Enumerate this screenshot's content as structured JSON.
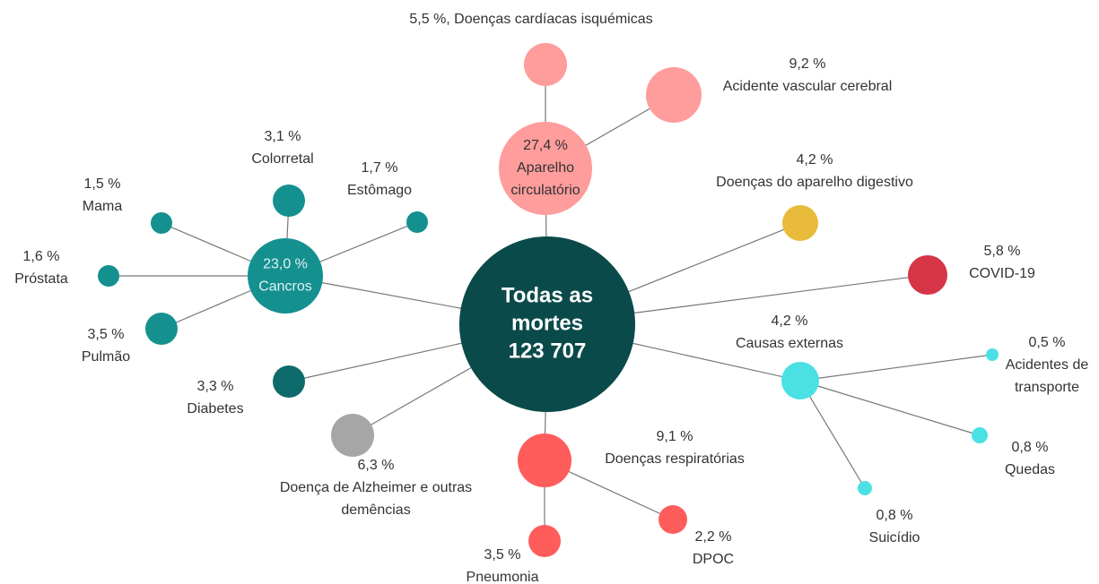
{
  "nodes": [
    {
      "label": [
        "Todas as",
        "mortes",
        "123 707"
      ],
      "color": "#0b4a4a"
    },
    {
      "label": [
        "27,4 %",
        "Aparelho",
        "circulatório"
      ],
      "color": "#ff9c9c"
    },
    {
      "label": [
        "23,0 %",
        "Cancros"
      ],
      "color": "#14908f"
    },
    {
      "label": [
        "5,5 %, Doenças cardíacas isquémicas"
      ],
      "color": "#ff9c9c"
    },
    {
      "label": [
        "9,2 %",
        "Acidente vascular cerebral"
      ],
      "color": "#ff9c9c"
    },
    {
      "label": [
        "3,1 %",
        "Colorretal"
      ],
      "color": "#14908f"
    },
    {
      "label": [
        "1,7 %",
        "Estômago"
      ],
      "color": "#14908f"
    },
    {
      "label": [
        "1,5 %",
        "Mama"
      ],
      "color": "#14908f"
    },
    {
      "label": [
        "1,6 %",
        "Próstata"
      ],
      "color": "#14908f"
    },
    {
      "label": [
        "3,5 %",
        "Pulmão"
      ],
      "color": "#14908f"
    },
    {
      "label": [
        "4,2 %",
        "Doenças do aparelho digestivo"
      ],
      "color": "#e8bc3a"
    },
    {
      "label": [
        "5,8 %",
        "COVID-19"
      ],
      "color": "#d63447"
    },
    {
      "label": [
        "4,2 %",
        "Causas externas"
      ],
      "color": "#4ae0e4"
    },
    {
      "label": [
        "0,5 %",
        "Acidentes de",
        "transporte"
      ],
      "color": "#4ae0e4"
    },
    {
      "label": [
        "0,8 %",
        "Quedas"
      ],
      "color": "#4ae0e4"
    },
    {
      "label": [
        "0,8 %",
        "Suicídio"
      ],
      "color": "#4ae0e4"
    },
    {
      "label": [
        "3,3 %",
        "Diabetes"
      ],
      "color": "#0d6b6b"
    },
    {
      "label": [
        "6,3 %",
        "Doença de Alzheimer e outras",
        "demências"
      ],
      "color": "#a6a6a6"
    },
    {
      "label": [
        "9,1 %",
        "Doenças respiratórias"
      ],
      "color": "#ff5c5c"
    },
    {
      "label": [
        "3,5 %",
        "Pneumonia"
      ],
      "color": "#ff5c5c"
    },
    {
      "label": [
        "2,2 %",
        "DPOC"
      ],
      "color": "#ff5c5c"
    }
  ]
}
